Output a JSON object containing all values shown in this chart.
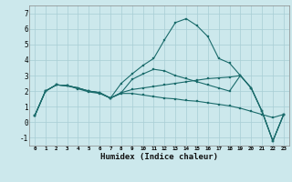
{
  "xlabel": "Humidex (Indice chaleur)",
  "background_color": "#cce8ec",
  "grid_color": "#a8cdd4",
  "line_color": "#1a6b6b",
  "xlim": [
    -0.5,
    23.5
  ],
  "ylim": [
    -1.5,
    7.5
  ],
  "yticks": [
    -1,
    0,
    1,
    2,
    3,
    4,
    5,
    6,
    7
  ],
  "xticks": [
    0,
    1,
    2,
    3,
    4,
    5,
    6,
    7,
    8,
    9,
    10,
    11,
    12,
    13,
    14,
    15,
    16,
    17,
    18,
    19,
    20,
    21,
    22,
    23
  ],
  "x": [
    0,
    1,
    2,
    3,
    4,
    5,
    6,
    7,
    8,
    9,
    10,
    11,
    12,
    13,
    14,
    15,
    16,
    17,
    18,
    19,
    20,
    21,
    22,
    23
  ],
  "line1": [
    0.4,
    2.0,
    2.4,
    2.35,
    2.2,
    2.0,
    1.9,
    1.55,
    2.5,
    3.1,
    3.65,
    4.1,
    5.3,
    6.4,
    6.65,
    6.2,
    5.5,
    4.1,
    3.8,
    3.0,
    2.2,
    0.7,
    -1.2,
    0.5
  ],
  "line2": [
    0.4,
    2.0,
    2.4,
    2.35,
    2.2,
    2.0,
    1.9,
    1.55,
    1.9,
    2.75,
    3.1,
    3.4,
    3.3,
    3.0,
    2.8,
    2.6,
    2.4,
    2.2,
    2.0,
    3.0,
    2.2,
    0.7,
    -1.2,
    0.5
  ],
  "line3": [
    0.4,
    2.0,
    2.4,
    2.35,
    2.2,
    2.0,
    1.9,
    1.55,
    1.9,
    2.1,
    2.2,
    2.3,
    2.4,
    2.5,
    2.6,
    2.7,
    2.8,
    2.85,
    2.9,
    3.0,
    2.2,
    0.7,
    -1.2,
    0.5
  ],
  "line4": [
    0.4,
    2.0,
    2.4,
    2.35,
    2.15,
    1.95,
    1.85,
    1.55,
    1.85,
    1.85,
    1.75,
    1.65,
    1.55,
    1.5,
    1.4,
    1.35,
    1.25,
    1.15,
    1.05,
    0.9,
    0.7,
    0.5,
    0.3,
    0.5
  ]
}
